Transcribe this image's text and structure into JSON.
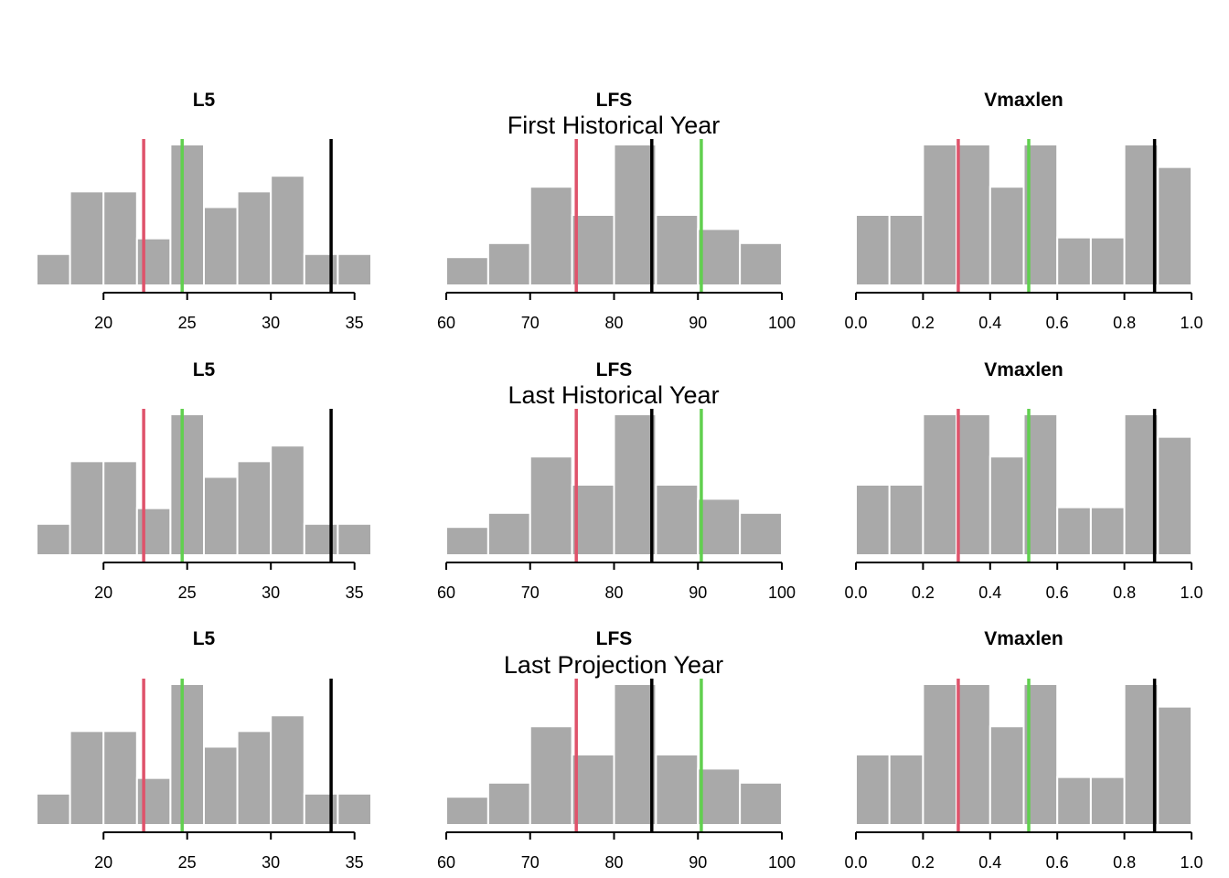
{
  "colors": {
    "bar_fill": "#a9a9a9",
    "bar_stroke": "#ffffff",
    "line_red": "#df536b",
    "line_green": "#61d04f",
    "line_black": "#000000",
    "axis": "#000000"
  },
  "row_titles": [
    "First Historical Year",
    "Last Historical Year",
    "Last Projection Year"
  ],
  "chart_data": [
    {
      "type": "bar",
      "title": "L5",
      "x_breaks": [
        16,
        18,
        20,
        22,
        24,
        26,
        28,
        30,
        32,
        34,
        36
      ],
      "counts": [
        2,
        6,
        6,
        3,
        9,
        5,
        6,
        7,
        2,
        2
      ],
      "xlim": [
        16,
        36
      ],
      "ticks": [
        20,
        25,
        30,
        35
      ],
      "tick_labels": [
        "20",
        "25",
        "30",
        "35"
      ],
      "vlines": [
        {
          "color": "line_red",
          "x": 22.4
        },
        {
          "color": "line_green",
          "x": 24.7
        },
        {
          "color": "line_black",
          "x": 33.6
        }
      ]
    },
    {
      "type": "bar",
      "title": "LFS",
      "x_breaks": [
        60,
        65,
        70,
        75,
        80,
        85,
        90,
        95,
        100
      ],
      "counts": [
        1,
        1.5,
        3.5,
        2.5,
        5,
        2.5,
        2,
        1.5
      ],
      "xlim": [
        60,
        100
      ],
      "ticks": [
        60,
        70,
        80,
        90,
        100
      ],
      "tick_labels": [
        "60",
        "70",
        "80",
        "90",
        "100"
      ],
      "vlines": [
        {
          "color": "line_red",
          "x": 75.5
        },
        {
          "color": "line_black",
          "x": 84.5
        },
        {
          "color": "line_green",
          "x": 90.4
        }
      ]
    },
    {
      "type": "bar",
      "title": "Vmaxlen",
      "x_breaks": [
        0.0,
        0.1,
        0.2,
        0.3,
        0.4,
        0.5,
        0.6,
        0.7,
        0.8,
        0.9,
        1.0
      ],
      "counts": [
        2.5,
        2.5,
        5,
        5,
        3.5,
        5,
        1.7,
        1.7,
        5,
        4.2
      ],
      "xlim": [
        0.0,
        1.0
      ],
      "ticks": [
        0.0,
        0.2,
        0.4,
        0.6,
        0.8,
        1.0
      ],
      "tick_labels": [
        "0.0",
        "0.2",
        "0.4",
        "0.6",
        "0.8",
        "1.0"
      ],
      "vlines": [
        {
          "color": "line_red",
          "x": 0.305
        },
        {
          "color": "line_green",
          "x": 0.515
        },
        {
          "color": "line_black",
          "x": 0.89
        }
      ]
    }
  ]
}
